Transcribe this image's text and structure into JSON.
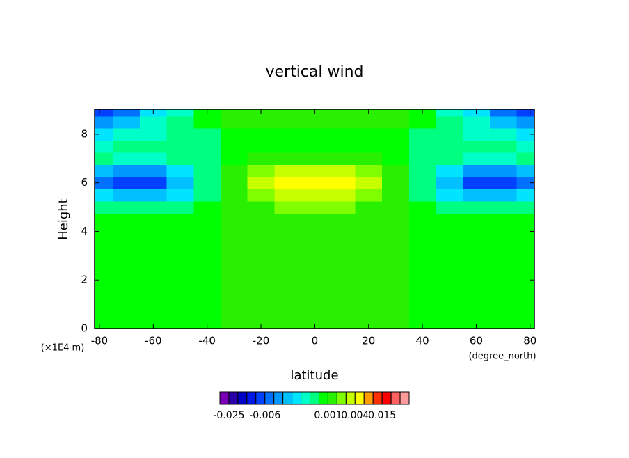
{
  "chart_data": {
    "type": "contour",
    "title": "vertical wind",
    "x_label": "latitude",
    "x_units": "(degree_north)",
    "y_label": "Height",
    "y_units": "(×1E4 m)",
    "x": [
      -80,
      -70,
      -60,
      -50,
      -40,
      -30,
      -20,
      -10,
      0,
      10,
      20,
      30,
      40,
      50,
      60,
      70,
      80
    ],
    "y": [
      0,
      0.5,
      1,
      1.5,
      2,
      2.5,
      3,
      3.5,
      4,
      4.5,
      5,
      5.5,
      6,
      6.5,
      7,
      7.5,
      8,
      8.5,
      9
    ],
    "z": [
      [
        0.0005,
        0.0005,
        0.0005,
        0.0005,
        0.0005,
        0.0012,
        0.0012,
        0.0012,
        0.0012,
        0.0012,
        0.0012,
        0.0012,
        0.0005,
        0.0005,
        0.0005,
        0.0005,
        0.0005
      ],
      [
        0.0005,
        0.0005,
        0.0005,
        0.0005,
        0.0005,
        0.0012,
        0.0012,
        0.0012,
        0.0012,
        0.0012,
        0.0012,
        0.0012,
        0.0005,
        0.0005,
        0.0005,
        0.0005,
        0.0005
      ],
      [
        0.0005,
        0.0005,
        0.0005,
        0.0005,
        0.0005,
        0.0012,
        0.0012,
        0.0012,
        0.0012,
        0.0012,
        0.0012,
        0.0012,
        0.0005,
        0.0005,
        0.0005,
        0.0005,
        0.0005
      ],
      [
        0.0005,
        0.0005,
        0.0005,
        0.0005,
        0.0005,
        0.0012,
        0.0012,
        0.0012,
        0.0012,
        0.0012,
        0.0012,
        0.0012,
        0.0005,
        0.0005,
        0.0005,
        0.0005,
        0.0005
      ],
      [
        0.0005,
        0.0005,
        0.0005,
        0.0005,
        0.0005,
        0.0012,
        0.0012,
        0.0012,
        0.0012,
        0.0012,
        0.0012,
        0.0012,
        0.0005,
        0.0005,
        0.0005,
        0.0005,
        0.0005
      ],
      [
        0.0005,
        0.0005,
        0.0005,
        0.0005,
        0.0005,
        0.0012,
        0.0012,
        0.0012,
        0.0012,
        0.0012,
        0.0012,
        0.0012,
        0.0005,
        0.0005,
        0.0005,
        0.0005,
        0.0005
      ],
      [
        0.0005,
        0.0005,
        0.0005,
        0.0005,
        0.0005,
        0.0012,
        0.0012,
        0.0012,
        0.0012,
        0.0012,
        0.0012,
        0.0012,
        0.0005,
        0.0005,
        0.0005,
        0.0005,
        0.0005
      ],
      [
        0.0005,
        0.0005,
        0.0005,
        0.0005,
        0.0005,
        0.0012,
        0.0012,
        0.0012,
        0.0012,
        0.0012,
        0.0012,
        0.0012,
        0.0005,
        0.0005,
        0.0005,
        0.0005,
        0.0005
      ],
      [
        0.0005,
        0.0005,
        0.0005,
        0.0005,
        0.0005,
        0.0012,
        0.0012,
        0.0012,
        0.0012,
        0.0012,
        0.0012,
        0.0012,
        0.0005,
        0.0005,
        0.0005,
        0.0005,
        0.0005
      ],
      [
        0.0005,
        0.0005,
        0.0005,
        0.0005,
        0.0005,
        0.0012,
        0.0012,
        0.0012,
        0.0012,
        0.0012,
        0.0012,
        0.0012,
        0.0005,
        0.0005,
        0.0005,
        0.0005,
        0.0005
      ],
      [
        -0.0008,
        -0.001,
        -0.001,
        -0.0008,
        0.0003,
        0.0012,
        0.0018,
        0.0022,
        0.0025,
        0.0022,
        0.0018,
        0.0012,
        0.0003,
        -0.0008,
        -0.001,
        -0.001,
        -0.0008
      ],
      [
        -0.003,
        -0.004,
        -0.004,
        -0.003,
        -0.0005,
        0.0012,
        0.0025,
        0.003,
        0.0032,
        0.003,
        0.0025,
        0.0012,
        -0.0005,
        -0.003,
        -0.004,
        -0.004,
        -0.003
      ],
      [
        -0.006,
        -0.008,
        -0.007,
        -0.004,
        -0.0008,
        0.0015,
        0.0032,
        0.0042,
        0.0045,
        0.0042,
        0.0032,
        0.0015,
        -0.0008,
        -0.004,
        -0.007,
        -0.008,
        -0.006
      ],
      [
        -0.004,
        -0.005,
        -0.005,
        -0.003,
        -0.0005,
        0.0013,
        0.0025,
        0.0032,
        0.0034,
        0.0032,
        0.0025,
        0.0013,
        -0.0005,
        -0.003,
        -0.005,
        -0.005,
        -0.004
      ],
      [
        -0.001,
        -0.0012,
        -0.0012,
        -0.0008,
        -0.0003,
        0.0008,
        0.0013,
        0.0015,
        0.0015,
        0.0015,
        0.0013,
        0.0008,
        -0.0003,
        -0.0008,
        -0.0012,
        -0.0012,
        -0.001
      ],
      [
        -0.0012,
        -0.0008,
        -0.0005,
        -0.0004,
        -0.0002,
        0.0004,
        0.0006,
        0.0006,
        0.0006,
        0.0006,
        0.0006,
        0.0004,
        -0.0002,
        -0.0004,
        -0.0005,
        -0.0008,
        -0.0012
      ],
      [
        -0.003,
        -0.002,
        -0.0012,
        -0.0008,
        -0.0003,
        0.0004,
        0.0005,
        0.0005,
        0.0006,
        0.0005,
        0.0005,
        0.0004,
        -0.0003,
        -0.0008,
        -0.0012,
        -0.002,
        -0.003
      ],
      [
        -0.005,
        -0.004,
        -0.002,
        -0.001,
        0,
        0.0012,
        0.0013,
        0.0012,
        0.0012,
        0.0012,
        0.0013,
        0.0012,
        0,
        -0.001,
        -0.002,
        -0.004,
        -0.005
      ],
      [
        -0.007,
        -0.006,
        -0.003,
        -0.0015,
        0.0005,
        0.0016,
        0.0018,
        0.0016,
        0.0016,
        0.0016,
        0.0018,
        0.0016,
        0.0005,
        -0.0015,
        -0.003,
        -0.006,
        -0.007
      ]
    ],
    "levels": [
      -0.03,
      -0.025,
      -0.02,
      -0.015,
      -0.01,
      -0.006,
      -0.005,
      -0.004,
      -0.003,
      -0.002,
      -0.001,
      0,
      0.001,
      0.002,
      0.003,
      0.004,
      0.005,
      0.01,
      0.015,
      0.02,
      0.025,
      0.03
    ],
    "colors": [
      "#7a00b8",
      "#2a00a8",
      "#0000c8",
      "#0018e8",
      "#0040ff",
      "#0070ff",
      "#0098ff",
      "#00c0ff",
      "#00e4ff",
      "#00ffc8",
      "#00ff80",
      "#00ff00",
      "#28f000",
      "#80ff00",
      "#c8ff00",
      "#ffff00",
      "#ff9c00",
      "#ff3000",
      "#ff0000",
      "#ff6060",
      "#ff9a9a"
    ],
    "colorbar_ticks": [
      -0.025,
      -0.006,
      0.001,
      0.004,
      0.015
    ],
    "xlim": [
      -81.8,
      81.6
    ],
    "ylim": [
      0,
      9.03
    ],
    "xticks": [
      -80,
      -60,
      -40,
      -20,
      0,
      20,
      40,
      60,
      80
    ],
    "yticks": [
      0,
      2,
      4,
      6,
      8
    ]
  }
}
